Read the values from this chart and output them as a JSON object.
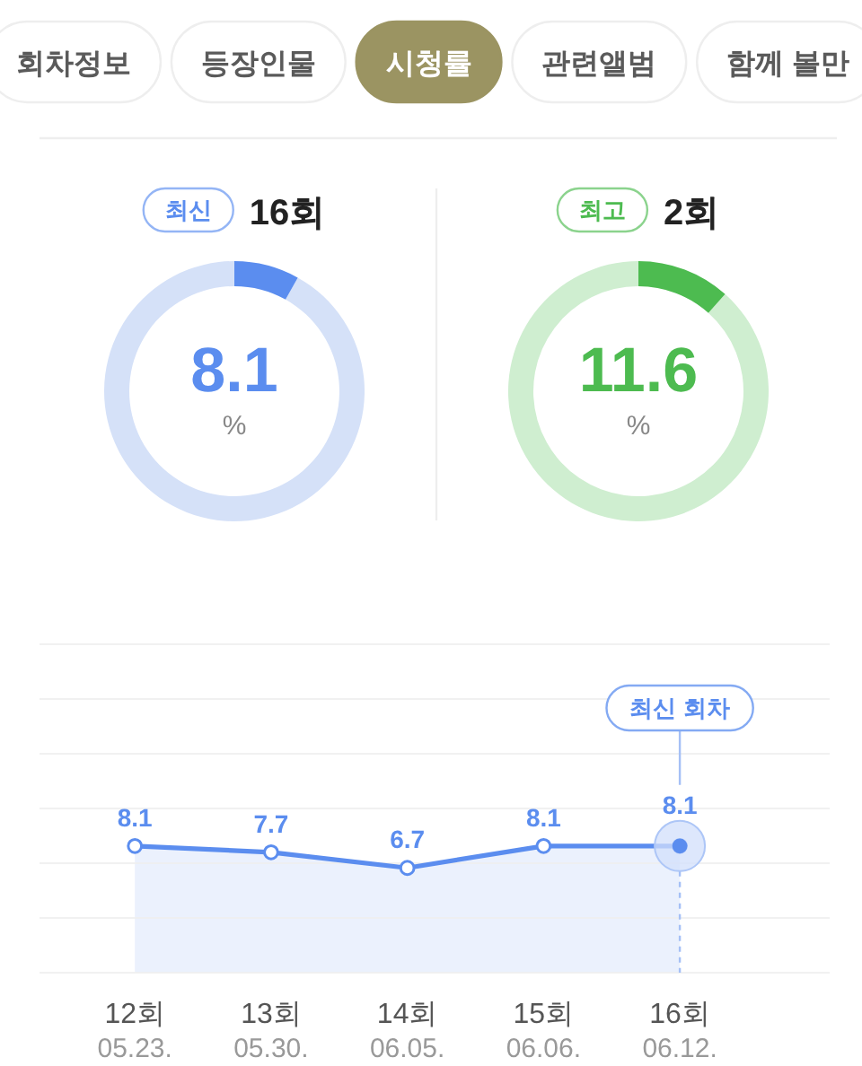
{
  "chart_data": [
    {
      "type": "other",
      "categories": [
        "회차정보",
        "등장인물",
        "시청률",
        "관련앨범",
        "함께 볼만"
      ],
      "colors": [
        "#ffffff",
        "#ffffff",
        "#9b9462",
        "#ffffff",
        "#ffffff"
      ]
    },
    {
      "type": "donut",
      "title": "16회",
      "annotations": [
        "최신",
        "%"
      ],
      "categories": [
        null,
        null
      ],
      "values": [
        8.1,
        91.9
      ],
      "colors": [
        "#5b8def",
        "#d5e1f8"
      ],
      "value_labels": [
        "8.1",
        null
      ]
    },
    {
      "type": "donut",
      "title": "2회",
      "annotations": [
        "최고",
        "%"
      ],
      "categories": [
        null,
        null
      ],
      "values": [
        11.6,
        88.4
      ],
      "colors": [
        "#4dbb50",
        "#cfeed0"
      ],
      "value_labels": [
        "11.6",
        null
      ]
    },
    {
      "type": "area",
      "categories": [
        "12회\n05.23.",
        "13회\n05.30.",
        "14회\n06.05.",
        "15회\n06.06.",
        "16회\n06.12."
      ],
      "values": [
        8.1,
        7.7,
        6.7,
        8.1,
        8.1
      ],
      "color": "#5b8def",
      "ylim": [
        0,
        21
      ],
      "yticks": [
        {
          "value": 0,
          "label": null
        },
        {
          "value": 3.5,
          "label": null
        },
        {
          "value": 7,
          "label": null
        },
        {
          "value": 10.5,
          "label": null
        },
        {
          "value": 14,
          "label": null
        },
        {
          "value": 17.5,
          "label": null
        },
        {
          "value": 21,
          "label": null
        }
      ],
      "tick_labels": "x",
      "grid": "y",
      "marker": "circle",
      "data_labels": true,
      "ref_lines": [
        {
          "axis": "x",
          "value": "16회\n06.12.",
          "label": "최신 회차",
          "line_style": "dashed"
        }
      ]
    }
  ]
}
